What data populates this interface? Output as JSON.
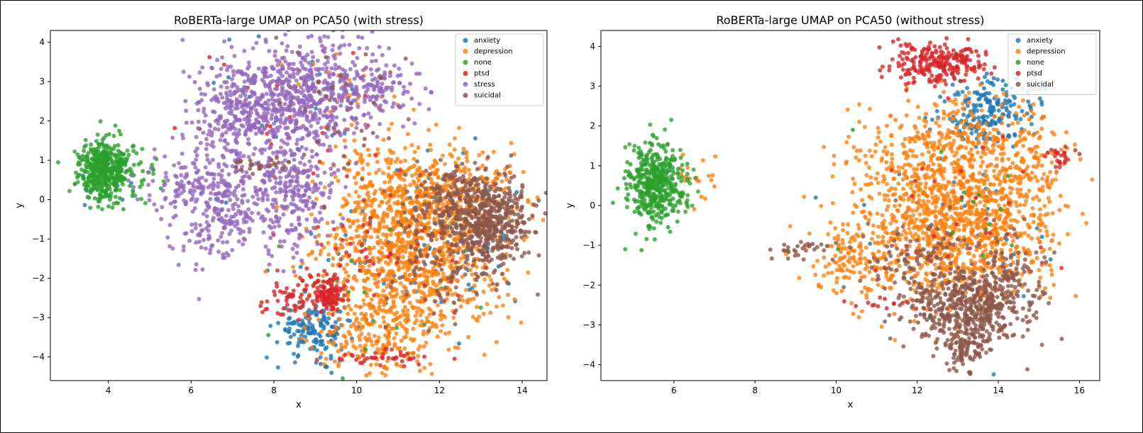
{
  "chart_data": [
    {
      "type": "scatter",
      "title": "RoBERTa-large UMAP on PCA50 (with stress)",
      "xlabel": "x",
      "ylabel": "y",
      "xlim": [
        2.6,
        14.6
      ],
      "ylim": [
        -4.6,
        4.3
      ],
      "xticks": [
        4,
        6,
        8,
        10,
        12,
        14
      ],
      "yticks": [
        -4,
        -3,
        -2,
        -1,
        0,
        1,
        2,
        3,
        4
      ],
      "legend_position": "top-right",
      "series": [
        {
          "name": "anxiety",
          "color": "#1f77b4",
          "clusters": [
            {
              "cx": 9.0,
              "cy": -3.3,
              "sx": 0.45,
              "sy": 0.35,
              "n": 160
            },
            {
              "cx": 10.5,
              "cy": -1.8,
              "sx": 1.2,
              "sy": 1.0,
              "n": 50
            },
            {
              "cx": 12.5,
              "cy": -1.0,
              "sx": 1.0,
              "sy": 1.0,
              "n": 40
            },
            {
              "cx": 8.3,
              "cy": 1.5,
              "sx": 1.0,
              "sy": 1.2,
              "n": 25
            },
            {
              "cx": 3.9,
              "cy": 0.6,
              "sx": 0.3,
              "sy": 0.4,
              "n": 12
            }
          ]
        },
        {
          "name": "depression",
          "color": "#ff7f0e",
          "clusters": [
            {
              "cx": 11.3,
              "cy": -1.3,
              "sx": 1.1,
              "sy": 1.2,
              "n": 1050
            },
            {
              "cx": 12.5,
              "cy": 0.0,
              "sx": 0.9,
              "sy": 0.6,
              "n": 250
            },
            {
              "cx": 10.4,
              "cy": -3.4,
              "sx": 0.7,
              "sy": 0.5,
              "n": 160
            },
            {
              "cx": 10.6,
              "cy": 0.5,
              "sx": 0.6,
              "sy": 0.5,
              "n": 90
            },
            {
              "cx": 9.4,
              "cy": 2.7,
              "sx": 0.8,
              "sy": 0.7,
              "n": 40
            }
          ]
        },
        {
          "name": "none",
          "color": "#2ca02c",
          "clusters": [
            {
              "cx": 3.9,
              "cy": 0.75,
              "sx": 0.3,
              "sy": 0.38,
              "n": 430
            },
            {
              "cx": 4.5,
              "cy": 0.5,
              "sx": 0.35,
              "sy": 0.4,
              "n": 30
            },
            {
              "cx": 10.5,
              "cy": -2.5,
              "sx": 1.5,
              "sy": 1.0,
              "n": 15
            }
          ]
        },
        {
          "name": "ptsd",
          "color": "#d62728",
          "clusters": [
            {
              "cx": 9.3,
              "cy": -2.4,
              "sx": 0.2,
              "sy": 0.22,
              "n": 110
            },
            {
              "cx": 8.5,
              "cy": -2.5,
              "sx": 0.35,
              "sy": 0.3,
              "n": 60
            },
            {
              "cx": 10.6,
              "cy": -4.0,
              "sx": 0.6,
              "sy": 0.12,
              "n": 40
            },
            {
              "cx": 10.5,
              "cy": -1.0,
              "sx": 1.3,
              "sy": 1.0,
              "n": 50
            },
            {
              "cx": 8.5,
              "cy": 2.0,
              "sx": 1.2,
              "sy": 1.0,
              "n": 25
            }
          ]
        },
        {
          "name": "stress",
          "color": "#9467bd",
          "clusters": [
            {
              "cx": 8.7,
              "cy": 2.7,
              "sx": 0.9,
              "sy": 0.7,
              "n": 500
            },
            {
              "cx": 7.2,
              "cy": 2.3,
              "sx": 0.7,
              "sy": 0.6,
              "n": 260
            },
            {
              "cx": 6.7,
              "cy": 0.0,
              "sx": 0.6,
              "sy": 0.8,
              "n": 300
            },
            {
              "cx": 8.4,
              "cy": 0.3,
              "sx": 0.6,
              "sy": 0.9,
              "n": 320
            },
            {
              "cx": 10.3,
              "cy": 2.8,
              "sx": 0.6,
              "sy": 0.4,
              "n": 130
            },
            {
              "cx": 5.5,
              "cy": 0.4,
              "sx": 0.4,
              "sy": 0.3,
              "n": 45
            }
          ]
        },
        {
          "name": "suicidal",
          "color": "#8c564b",
          "clusters": [
            {
              "cx": 13.2,
              "cy": -0.6,
              "sx": 0.5,
              "sy": 0.6,
              "n": 480
            },
            {
              "cx": 12.3,
              "cy": 0.1,
              "sx": 0.6,
              "sy": 0.4,
              "n": 140
            },
            {
              "cx": 12.0,
              "cy": -1.5,
              "sx": 0.8,
              "sy": 0.8,
              "n": 130
            },
            {
              "cx": 9.5,
              "cy": 2.0,
              "sx": 1.0,
              "sy": 1.0,
              "n": 35
            },
            {
              "cx": 7.7,
              "cy": 0.9,
              "sx": 0.3,
              "sy": 0.1,
              "n": 25
            }
          ]
        }
      ]
    },
    {
      "type": "scatter",
      "title": "RoBERTa-large UMAP on PCA50  (without stress)",
      "xlabel": "x",
      "ylabel": "y",
      "xlim": [
        4.2,
        16.5
      ],
      "ylim": [
        -4.4,
        4.4
      ],
      "xticks": [
        6,
        8,
        10,
        12,
        14,
        16
      ],
      "yticks": [
        -4,
        -3,
        -2,
        -1,
        0,
        1,
        2,
        3,
        4
      ],
      "legend_position": "top-right",
      "series": [
        {
          "name": "anxiety",
          "color": "#1f77b4",
          "clusters": [
            {
              "cx": 13.8,
              "cy": 2.4,
              "sx": 0.55,
              "sy": 0.4,
              "n": 200
            },
            {
              "cx": 12.8,
              "cy": -0.3,
              "sx": 1.3,
              "sy": 1.3,
              "n": 40
            },
            {
              "cx": 5.5,
              "cy": 0.6,
              "sx": 0.3,
              "sy": 0.4,
              "n": 8
            }
          ]
        },
        {
          "name": "depression",
          "color": "#ff7f0e",
          "clusters": [
            {
              "cx": 12.9,
              "cy": -0.6,
              "sx": 1.2,
              "sy": 1.0,
              "n": 1100
            },
            {
              "cx": 12.8,
              "cy": 1.3,
              "sx": 1.2,
              "sy": 0.7,
              "n": 400
            },
            {
              "cx": 10.2,
              "cy": -1.3,
              "sx": 0.45,
              "sy": 0.4,
              "n": 90
            },
            {
              "cx": 14.8,
              "cy": 1.3,
              "sx": 0.4,
              "sy": 0.6,
              "n": 80
            },
            {
              "cx": 6.5,
              "cy": 0.7,
              "sx": 0.4,
              "sy": 0.3,
              "n": 20
            }
          ]
        },
        {
          "name": "none",
          "color": "#2ca02c",
          "clusters": [
            {
              "cx": 5.5,
              "cy": 0.6,
              "sx": 0.32,
              "sy": 0.5,
              "n": 440
            },
            {
              "cx": 6.2,
              "cy": 0.2,
              "sx": 0.3,
              "sy": 0.3,
              "n": 20
            },
            {
              "cx": 13.0,
              "cy": 0.0,
              "sx": 1.3,
              "sy": 1.0,
              "n": 15
            }
          ]
        },
        {
          "name": "ptsd",
          "color": "#d62728",
          "clusters": [
            {
              "cx": 12.5,
              "cy": 3.6,
              "sx": 0.6,
              "sy": 0.28,
              "n": 240
            },
            {
              "cx": 15.5,
              "cy": 1.2,
              "sx": 0.15,
              "sy": 0.15,
              "n": 25
            },
            {
              "cx": 11.0,
              "cy": -2.5,
              "sx": 0.4,
              "sy": 0.1,
              "n": 15
            },
            {
              "cx": 12.8,
              "cy": -0.5,
              "sx": 1.3,
              "sy": 1.2,
              "n": 30
            }
          ]
        },
        {
          "name": "suicidal",
          "color": "#8c564b",
          "clusters": [
            {
              "cx": 13.3,
              "cy": -2.6,
              "sx": 0.7,
              "sy": 0.5,
              "n": 500
            },
            {
              "cx": 13.1,
              "cy": -3.6,
              "sx": 0.3,
              "sy": 0.25,
              "n": 80
            },
            {
              "cx": 12.0,
              "cy": -1.5,
              "sx": 0.7,
              "sy": 0.6,
              "n": 120
            },
            {
              "cx": 14.3,
              "cy": -1.6,
              "sx": 0.4,
              "sy": 0.4,
              "n": 80
            },
            {
              "cx": 9.2,
              "cy": -1.1,
              "sx": 0.5,
              "sy": 0.12,
              "n": 30
            }
          ]
        }
      ]
    }
  ]
}
